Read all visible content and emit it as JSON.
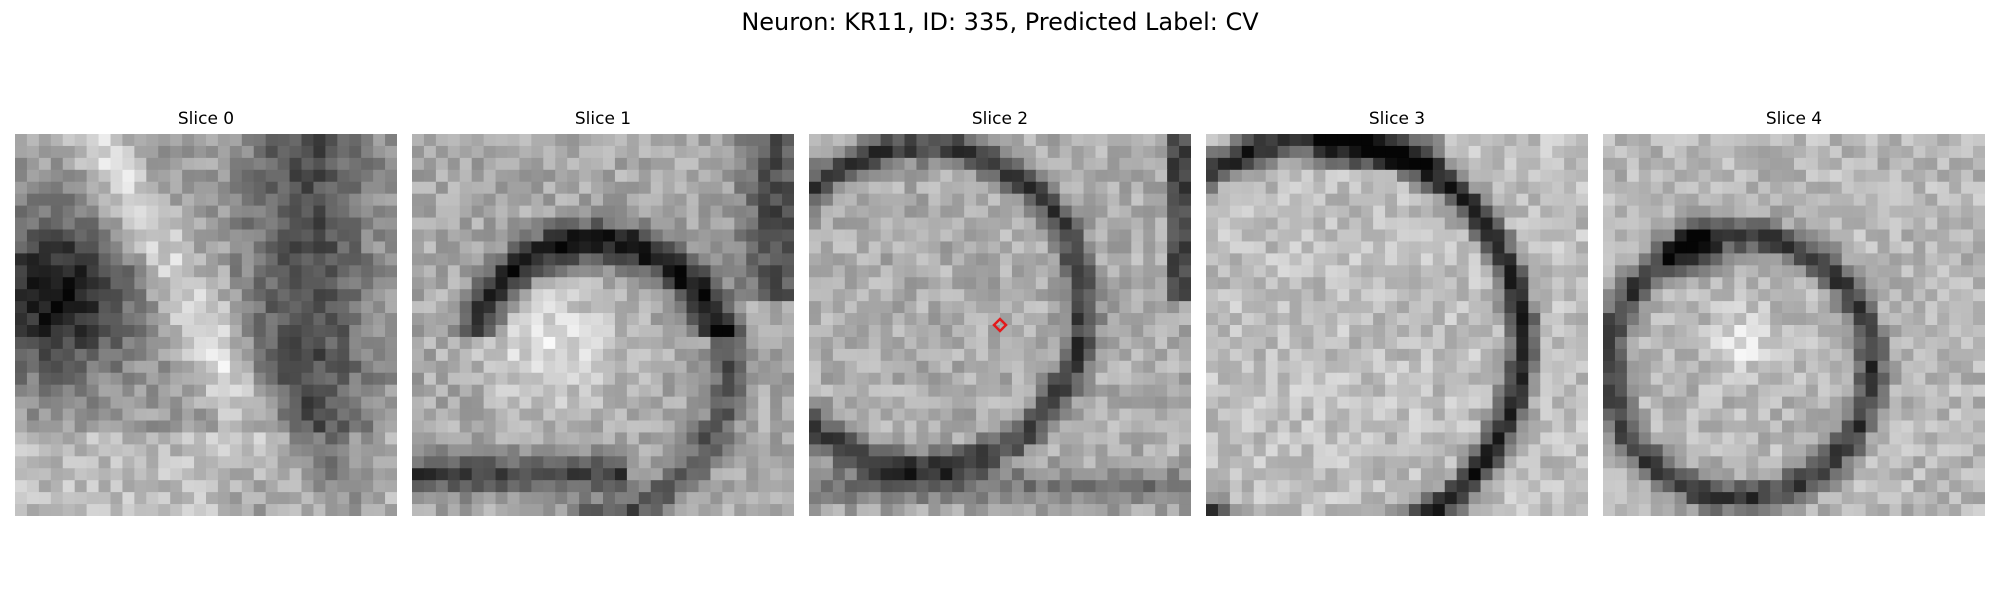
{
  "figure": {
    "title": "Neuron: KR11, ID: 335, Predicted Label: CV",
    "marker_color": "#e31a1c",
    "colormap": "grayscale"
  },
  "slices": [
    {
      "label": "Slice 0",
      "pattern": "organelle-edge",
      "marker": false
    },
    {
      "label": "Slice 1",
      "pattern": "dark-arc-top",
      "marker": false
    },
    {
      "label": "Slice 2",
      "pattern": "ring",
      "marker": true
    },
    {
      "label": "Slice 3",
      "pattern": "ring-dark",
      "marker": false
    },
    {
      "label": "Slice 4",
      "pattern": "faint-ring",
      "marker": false
    }
  ]
}
